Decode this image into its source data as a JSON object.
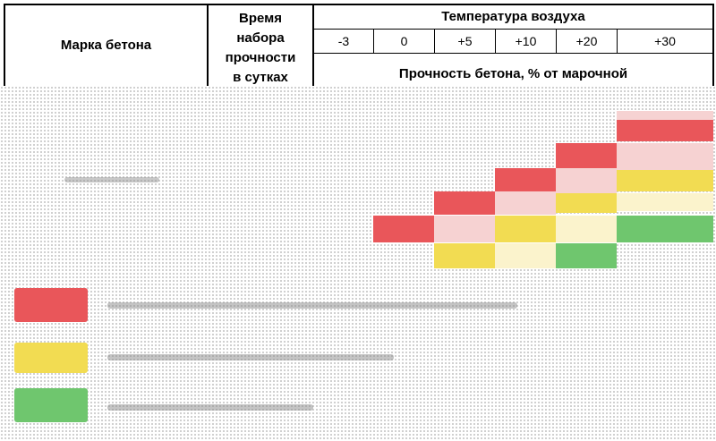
{
  "header": {
    "brand_label": "Марка бетона",
    "time_label_lines": [
      "Время",
      "набора",
      "прочности",
      "в сутках"
    ],
    "air_temp_label": "Температура воздуха",
    "temps": [
      "-3",
      "0",
      "+5",
      "+10",
      "+20",
      "+30"
    ],
    "strength_label": "Прочность бетона, % от марочной"
  },
  "colors": {
    "red": "#e9565a",
    "yellow": "#f2dc52",
    "green": "#6fc66e",
    "pink": "#f6d2d2",
    "dots": "#bdbdbd"
  }
}
